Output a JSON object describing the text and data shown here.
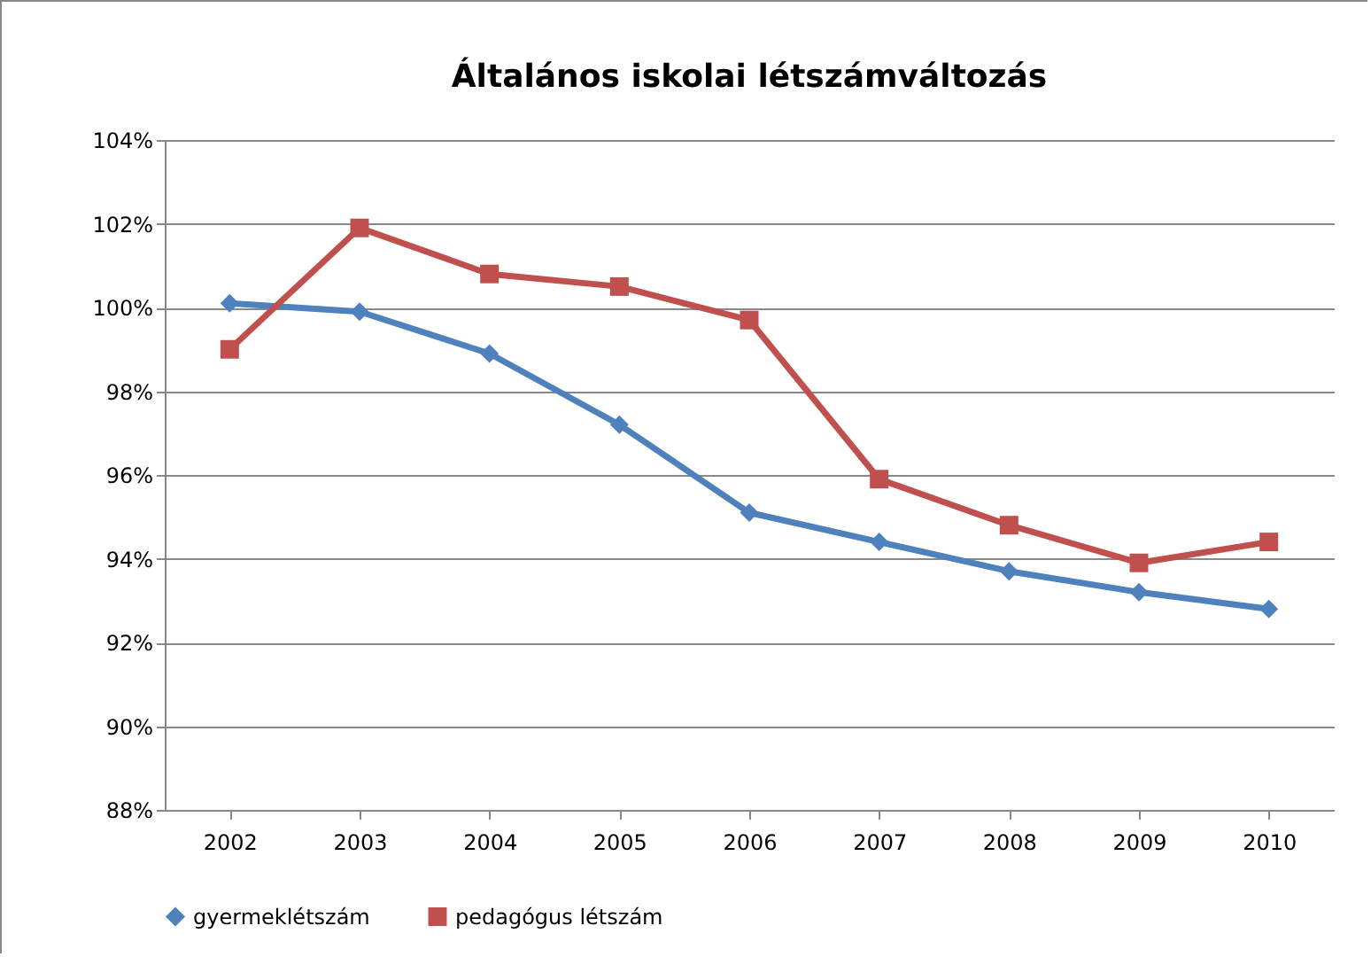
{
  "chart_data": {
    "type": "line",
    "title": "Általános iskolai létszámváltozás",
    "categories": [
      "2002",
      "2003",
      "2004",
      "2005",
      "2006",
      "2007",
      "2008",
      "2009",
      "2010"
    ],
    "series": [
      {
        "name": "gyermeklétszám",
        "color": "#4f81bd",
        "marker": "diamond",
        "values": [
          100.1,
          99.9,
          98.9,
          97.2,
          95.1,
          94.4,
          93.7,
          93.2,
          92.8
        ]
      },
      {
        "name": "pedagógus létszám",
        "color": "#c0504d",
        "marker": "square",
        "values": [
          99.0,
          101.9,
          100.8,
          100.5,
          99.7,
          95.9,
          94.8,
          93.9,
          94.4
        ]
      }
    ],
    "ylim": [
      88,
      104
    ],
    "yticks": [
      {
        "value": 88,
        "label": "88%"
      },
      {
        "value": 90,
        "label": "90%"
      },
      {
        "value": 92,
        "label": "92%"
      },
      {
        "value": 94,
        "label": "94%"
      },
      {
        "value": 96,
        "label": "96%"
      },
      {
        "value": 98,
        "label": "98%"
      },
      {
        "value": 100,
        "label": "100%"
      },
      {
        "value": 102,
        "label": "102%"
      },
      {
        "value": 104,
        "label": "104%"
      }
    ],
    "grid": "y",
    "legend": "bottom",
    "line_style": "solid"
  }
}
